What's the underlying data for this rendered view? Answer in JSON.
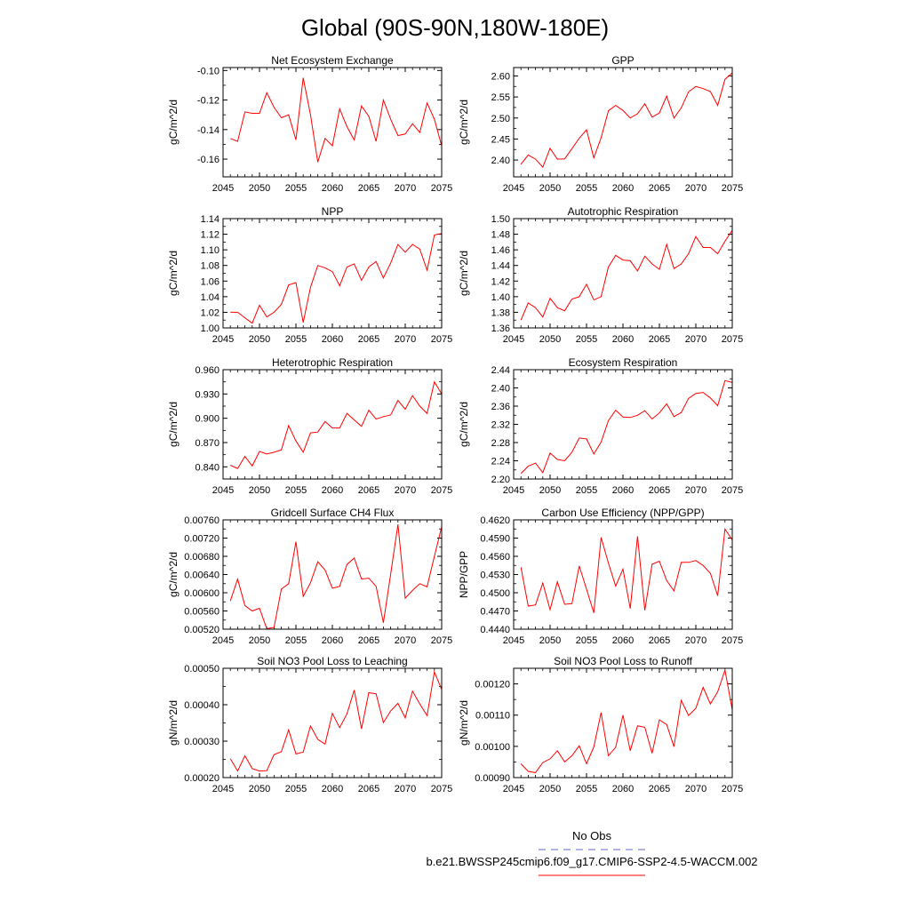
{
  "figure": {
    "title": "Global (90S-90N,180W-180E)",
    "series_color": "#ff0000",
    "obs_color": "#6666cc",
    "x_ticks": [
      2045,
      2050,
      2055,
      2060,
      2065,
      2070,
      2075
    ],
    "legend": {
      "obs_label": "No Obs",
      "run_label": "b.e21.BWSSP245cmip6.f09_g17.CMIP6-SSP2-4.5-WACCM.002"
    }
  },
  "chart_data": [
    {
      "type": "line",
      "title": "Net Ecosystem Exchange",
      "ylabel": "gC/m^2/d",
      "xlim": [
        2045,
        2075
      ],
      "ylim": [
        -0.172,
        -0.098
      ],
      "yticks": [
        -0.16,
        -0.14,
        -0.12,
        -0.1
      ],
      "ytick_labels": [
        "-0.16",
        "-0.14",
        "-0.12",
        "-0.10"
      ],
      "x": [
        2046,
        2047,
        2048,
        2049,
        2050,
        2051,
        2052,
        2053,
        2054,
        2055,
        2056,
        2057,
        2058,
        2059,
        2060,
        2061,
        2062,
        2063,
        2064,
        2065,
        2066,
        2067,
        2068,
        2069,
        2070,
        2071,
        2072,
        2073,
        2074,
        2075
      ],
      "y": [
        -0.146,
        -0.148,
        -0.128,
        -0.129,
        -0.129,
        -0.115,
        -0.125,
        -0.132,
        -0.13,
        -0.147,
        -0.105,
        -0.13,
        -0.162,
        -0.146,
        -0.151,
        -0.126,
        -0.138,
        -0.147,
        -0.124,
        -0.131,
        -0.148,
        -0.12,
        -0.133,
        -0.144,
        -0.143,
        -0.136,
        -0.142,
        -0.122,
        -0.133,
        -0.151
      ]
    },
    {
      "type": "line",
      "title": "GPP",
      "ylabel": "gC/m^2/d",
      "xlim": [
        2045,
        2075
      ],
      "ylim": [
        2.36,
        2.62
      ],
      "yticks": [
        2.4,
        2.45,
        2.5,
        2.55,
        2.6
      ],
      "ytick_labels": [
        "2.40",
        "2.45",
        "2.50",
        "2.55",
        "2.60"
      ],
      "x": [
        2046,
        2047,
        2048,
        2049,
        2050,
        2051,
        2052,
        2053,
        2054,
        2055,
        2056,
        2057,
        2058,
        2059,
        2060,
        2061,
        2062,
        2063,
        2064,
        2065,
        2066,
        2067,
        2068,
        2069,
        2070,
        2071,
        2072,
        2073,
        2074,
        2075
      ],
      "y": [
        2.39,
        2.412,
        2.402,
        2.383,
        2.428,
        2.402,
        2.403,
        2.427,
        2.452,
        2.472,
        2.405,
        2.453,
        2.517,
        2.53,
        2.518,
        2.5,
        2.51,
        2.534,
        2.502,
        2.512,
        2.552,
        2.5,
        2.524,
        2.562,
        2.575,
        2.57,
        2.563,
        2.53,
        2.592,
        2.607
      ]
    },
    {
      "type": "line",
      "title": "NPP",
      "ylabel": "gC/m^2/d",
      "xlim": [
        2045,
        2075
      ],
      "ylim": [
        1.0,
        1.14
      ],
      "yticks": [
        1.0,
        1.02,
        1.04,
        1.06,
        1.08,
        1.1,
        1.12,
        1.14
      ],
      "ytick_labels": [
        "1.00",
        "1.02",
        "1.04",
        "1.06",
        "1.08",
        "1.10",
        "1.12",
        "1.14"
      ],
      "x": [
        2046,
        2047,
        2048,
        2049,
        2050,
        2051,
        2052,
        2053,
        2054,
        2055,
        2056,
        2057,
        2058,
        2059,
        2060,
        2061,
        2062,
        2063,
        2064,
        2065,
        2066,
        2067,
        2068,
        2069,
        2070,
        2071,
        2072,
        2073,
        2074,
        2075
      ],
      "y": [
        1.02,
        1.02,
        1.013,
        1.006,
        1.029,
        1.014,
        1.02,
        1.03,
        1.055,
        1.058,
        1.007,
        1.052,
        1.08,
        1.077,
        1.072,
        1.054,
        1.078,
        1.082,
        1.061,
        1.078,
        1.085,
        1.064,
        1.083,
        1.107,
        1.097,
        1.107,
        1.101,
        1.074,
        1.119,
        1.121
      ]
    },
    {
      "type": "line",
      "title": "Autotrophic Respiration",
      "ylabel": "gC/m^2/d",
      "xlim": [
        2045,
        2075
      ],
      "ylim": [
        1.36,
        1.5
      ],
      "yticks": [
        1.36,
        1.38,
        1.4,
        1.42,
        1.44,
        1.46,
        1.48,
        1.5
      ],
      "ytick_labels": [
        "1.36",
        "1.38",
        "1.40",
        "1.42",
        "1.44",
        "1.46",
        "1.48",
        "1.50"
      ],
      "x": [
        2046,
        2047,
        2048,
        2049,
        2050,
        2051,
        2052,
        2053,
        2054,
        2055,
        2056,
        2057,
        2058,
        2059,
        2060,
        2061,
        2062,
        2063,
        2064,
        2065,
        2066,
        2067,
        2068,
        2069,
        2070,
        2071,
        2072,
        2073,
        2074,
        2075
      ],
      "y": [
        1.37,
        1.392,
        1.386,
        1.374,
        1.398,
        1.386,
        1.382,
        1.397,
        1.4,
        1.416,
        1.396,
        1.4,
        1.438,
        1.453,
        1.447,
        1.446,
        1.433,
        1.452,
        1.442,
        1.435,
        1.467,
        1.436,
        1.442,
        1.455,
        1.477,
        1.463,
        1.463,
        1.455,
        1.471,
        1.485
      ]
    },
    {
      "type": "line",
      "title": "Heterotrophic Respiration",
      "ylabel": "gC/m^2/d",
      "xlim": [
        2045,
        2075
      ],
      "ylim": [
        0.825,
        0.96
      ],
      "yticks": [
        0.84,
        0.87,
        0.9,
        0.93,
        0.96
      ],
      "ytick_labels": [
        "0.840",
        "0.870",
        "0.900",
        "0.930",
        "0.960"
      ],
      "x": [
        2046,
        2047,
        2048,
        2049,
        2050,
        2051,
        2052,
        2053,
        2054,
        2055,
        2056,
        2057,
        2058,
        2059,
        2060,
        2061,
        2062,
        2063,
        2064,
        2065,
        2066,
        2067,
        2068,
        2069,
        2070,
        2071,
        2072,
        2073,
        2074,
        2075
      ],
      "y": [
        0.842,
        0.838,
        0.853,
        0.841,
        0.859,
        0.856,
        0.858,
        0.861,
        0.891,
        0.872,
        0.858,
        0.882,
        0.883,
        0.896,
        0.888,
        0.888,
        0.906,
        0.898,
        0.89,
        0.91,
        0.899,
        0.902,
        0.904,
        0.922,
        0.911,
        0.928,
        0.915,
        0.906,
        0.945,
        0.93
      ]
    },
    {
      "type": "line",
      "title": "Ecosystem Respiration",
      "ylabel": "gC/m^2/d",
      "xlim": [
        2045,
        2075
      ],
      "ylim": [
        2.2,
        2.44
      ],
      "yticks": [
        2.2,
        2.24,
        2.28,
        2.32,
        2.36,
        2.4,
        2.44
      ],
      "ytick_labels": [
        "2.20",
        "2.24",
        "2.28",
        "2.32",
        "2.36",
        "2.40",
        "2.44"
      ],
      "x": [
        2046,
        2047,
        2048,
        2049,
        2050,
        2051,
        2052,
        2053,
        2054,
        2055,
        2056,
        2057,
        2058,
        2059,
        2060,
        2061,
        2062,
        2063,
        2064,
        2065,
        2066,
        2067,
        2068,
        2069,
        2070,
        2071,
        2072,
        2073,
        2074,
        2075
      ],
      "y": [
        2.212,
        2.228,
        2.235,
        2.214,
        2.257,
        2.243,
        2.24,
        2.259,
        2.29,
        2.288,
        2.255,
        2.281,
        2.328,
        2.351,
        2.336,
        2.335,
        2.34,
        2.35,
        2.332,
        2.345,
        2.365,
        2.337,
        2.346,
        2.377,
        2.388,
        2.39,
        2.378,
        2.361,
        2.416,
        2.412
      ]
    },
    {
      "type": "line",
      "title": "Gridcell Surface CH4 Flux",
      "ylabel": "gC/m^2/d",
      "xlim": [
        2045,
        2075
      ],
      "ylim": [
        0.0052,
        0.0076
      ],
      "yticks": [
        0.0052,
        0.0056,
        0.006,
        0.0064,
        0.0068,
        0.0072,
        0.0076
      ],
      "ytick_labels": [
        "0.00520",
        "0.00560",
        "0.00600",
        "0.00640",
        "0.00680",
        "0.00720",
        "0.00760"
      ],
      "x": [
        2046,
        2047,
        2048,
        2049,
        2050,
        2051,
        2052,
        2053,
        2054,
        2055,
        2056,
        2057,
        2058,
        2059,
        2060,
        2061,
        2062,
        2063,
        2064,
        2065,
        2066,
        2067,
        2068,
        2069,
        2070,
        2071,
        2072,
        2073,
        2074,
        2075
      ],
      "y": [
        0.00582,
        0.0063,
        0.00572,
        0.0056,
        0.00566,
        0.00521,
        0.00524,
        0.00608,
        0.0062,
        0.00712,
        0.00592,
        0.00622,
        0.00668,
        0.0065,
        0.0061,
        0.00614,
        0.00662,
        0.00676,
        0.0063,
        0.00632,
        0.00614,
        0.00534,
        0.00641,
        0.0075,
        0.00588,
        0.00605,
        0.0062,
        0.00613,
        0.0068,
        0.00745
      ]
    },
    {
      "type": "line",
      "title": "Carbon Use Efficiency (NPP/GPP)",
      "ylabel": "NPP/GPP",
      "xlim": [
        2045,
        2075
      ],
      "ylim": [
        0.444,
        0.462
      ],
      "yticks": [
        0.444,
        0.447,
        0.45,
        0.453,
        0.456,
        0.459,
        0.462
      ],
      "ytick_labels": [
        "0.4440",
        "0.4470",
        "0.4500",
        "0.4530",
        "0.4560",
        "0.4590",
        "0.4620"
      ],
      "x": [
        2046,
        2047,
        2048,
        2049,
        2050,
        2051,
        2052,
        2053,
        2054,
        2055,
        2056,
        2057,
        2058,
        2059,
        2060,
        2061,
        2062,
        2063,
        2064,
        2065,
        2066,
        2067,
        2068,
        2069,
        2070,
        2071,
        2072,
        2073,
        2074,
        2075
      ],
      "y": [
        0.4542,
        0.4478,
        0.448,
        0.4516,
        0.4472,
        0.4518,
        0.4481,
        0.4482,
        0.4544,
        0.4506,
        0.4467,
        0.4591,
        0.4549,
        0.4511,
        0.4539,
        0.4474,
        0.4593,
        0.4471,
        0.4547,
        0.4552,
        0.452,
        0.4503,
        0.455,
        0.455,
        0.4553,
        0.4545,
        0.4532,
        0.4495,
        0.4605,
        0.4587
      ]
    },
    {
      "type": "line",
      "title": "Soil NO3 Pool Loss to Leaching",
      "ylabel": "gN/m^2/d",
      "xlim": [
        2045,
        2075
      ],
      "ylim": [
        0.0002,
        0.0005
      ],
      "yticks": [
        0.0002,
        0.0003,
        0.0004,
        0.0005
      ],
      "ytick_labels": [
        "0.00020",
        "0.00030",
        "0.00040",
        "0.00050"
      ],
      "x": [
        2046,
        2047,
        2048,
        2049,
        2050,
        2051,
        2052,
        2053,
        2054,
        2055,
        2056,
        2057,
        2058,
        2059,
        2060,
        2061,
        2062,
        2063,
        2064,
        2065,
        2066,
        2067,
        2068,
        2069,
        2070,
        2071,
        2072,
        2073,
        2074,
        2075
      ],
      "y": [
        0.000252,
        0.000218,
        0.00026,
        0.000225,
        0.000218,
        0.000219,
        0.000263,
        0.000271,
        0.000331,
        0.000265,
        0.00027,
        0.000342,
        0.000305,
        0.000292,
        0.000376,
        0.000337,
        0.000375,
        0.00044,
        0.000334,
        0.000433,
        0.00043,
        0.000351,
        0.000383,
        0.000404,
        0.000364,
        0.000437,
        0.000402,
        0.00037,
        0.00049,
        0.000442
      ]
    },
    {
      "type": "line",
      "title": "Soil NO3 Pool Loss to Runoff",
      "ylabel": "gN/m^2/d",
      "xlim": [
        2045,
        2075
      ],
      "ylim": [
        0.0009,
        0.00125
      ],
      "yticks": [
        0.0009,
        0.001,
        0.0011,
        0.0012
      ],
      "ytick_labels": [
        "0.00090",
        "0.00100",
        "0.00110",
        "0.00120"
      ],
      "x": [
        2046,
        2047,
        2048,
        2049,
        2050,
        2051,
        2052,
        2053,
        2054,
        2055,
        2056,
        2057,
        2058,
        2059,
        2060,
        2061,
        2062,
        2063,
        2064,
        2065,
        2066,
        2067,
        2068,
        2069,
        2070,
        2071,
        2072,
        2073,
        2074,
        2075
      ],
      "y": [
        0.000944,
        0.00092,
        0.000916,
        0.000948,
        0.00096,
        0.000986,
        0.00095,
        0.00097,
        0.001002,
        0.000944,
        0.000998,
        0.001108,
        0.00097,
        0.000997,
        0.0011,
        0.000986,
        0.001066,
        0.001061,
        0.000978,
        0.001085,
        0.00107,
        0.000999,
        0.001147,
        0.001099,
        0.001122,
        0.001189,
        0.001136,
        0.001175,
        0.001244,
        0.001117
      ]
    }
  ]
}
